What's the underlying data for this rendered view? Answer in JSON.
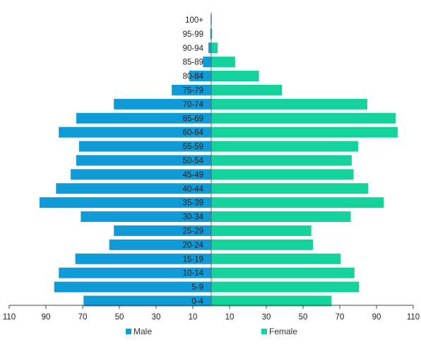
{
  "chart_data": {
    "type": "bar",
    "orientation": "horizontal",
    "categories": [
      "100+",
      "95-99",
      "90-94",
      "85-89",
      "80-84",
      "75-79",
      "70-74",
      "65-69",
      "60-64",
      "55-59",
      "50-54",
      "45-49",
      "40-44",
      "35-39",
      "30-34",
      "25-29",
      "20-24",
      "15-19",
      "10-14",
      "5-9",
      "0-4"
    ],
    "series": [
      {
        "name": "Male",
        "color": "#0f9bd7",
        "values": [
          0.3,
          0.5,
          1.5,
          4.5,
          12,
          21.5,
          53,
          73.5,
          83,
          72,
          73.5,
          76.5,
          84.5,
          93.5,
          71,
          53,
          55.5,
          74,
          83,
          85.5,
          69.5
        ]
      },
      {
        "name": "Female",
        "color": "#14d29b",
        "values": [
          0.3,
          0.5,
          3.5,
          13,
          26,
          38.5,
          85,
          100.5,
          101.5,
          80,
          76.5,
          77.5,
          85.5,
          94,
          76,
          54.5,
          55.5,
          70.5,
          78,
          80.5,
          65.5
        ]
      }
    ],
    "x_axis": {
      "ticks": [
        "110",
        "90",
        "70",
        "50",
        "30",
        "10",
        "10",
        "30",
        "50",
        "70",
        "90",
        "110"
      ],
      "range": [
        -110,
        110
      ]
    },
    "legend": {
      "placement": "bottom",
      "items": [
        "Male",
        "Female"
      ]
    },
    "grid": false
  }
}
